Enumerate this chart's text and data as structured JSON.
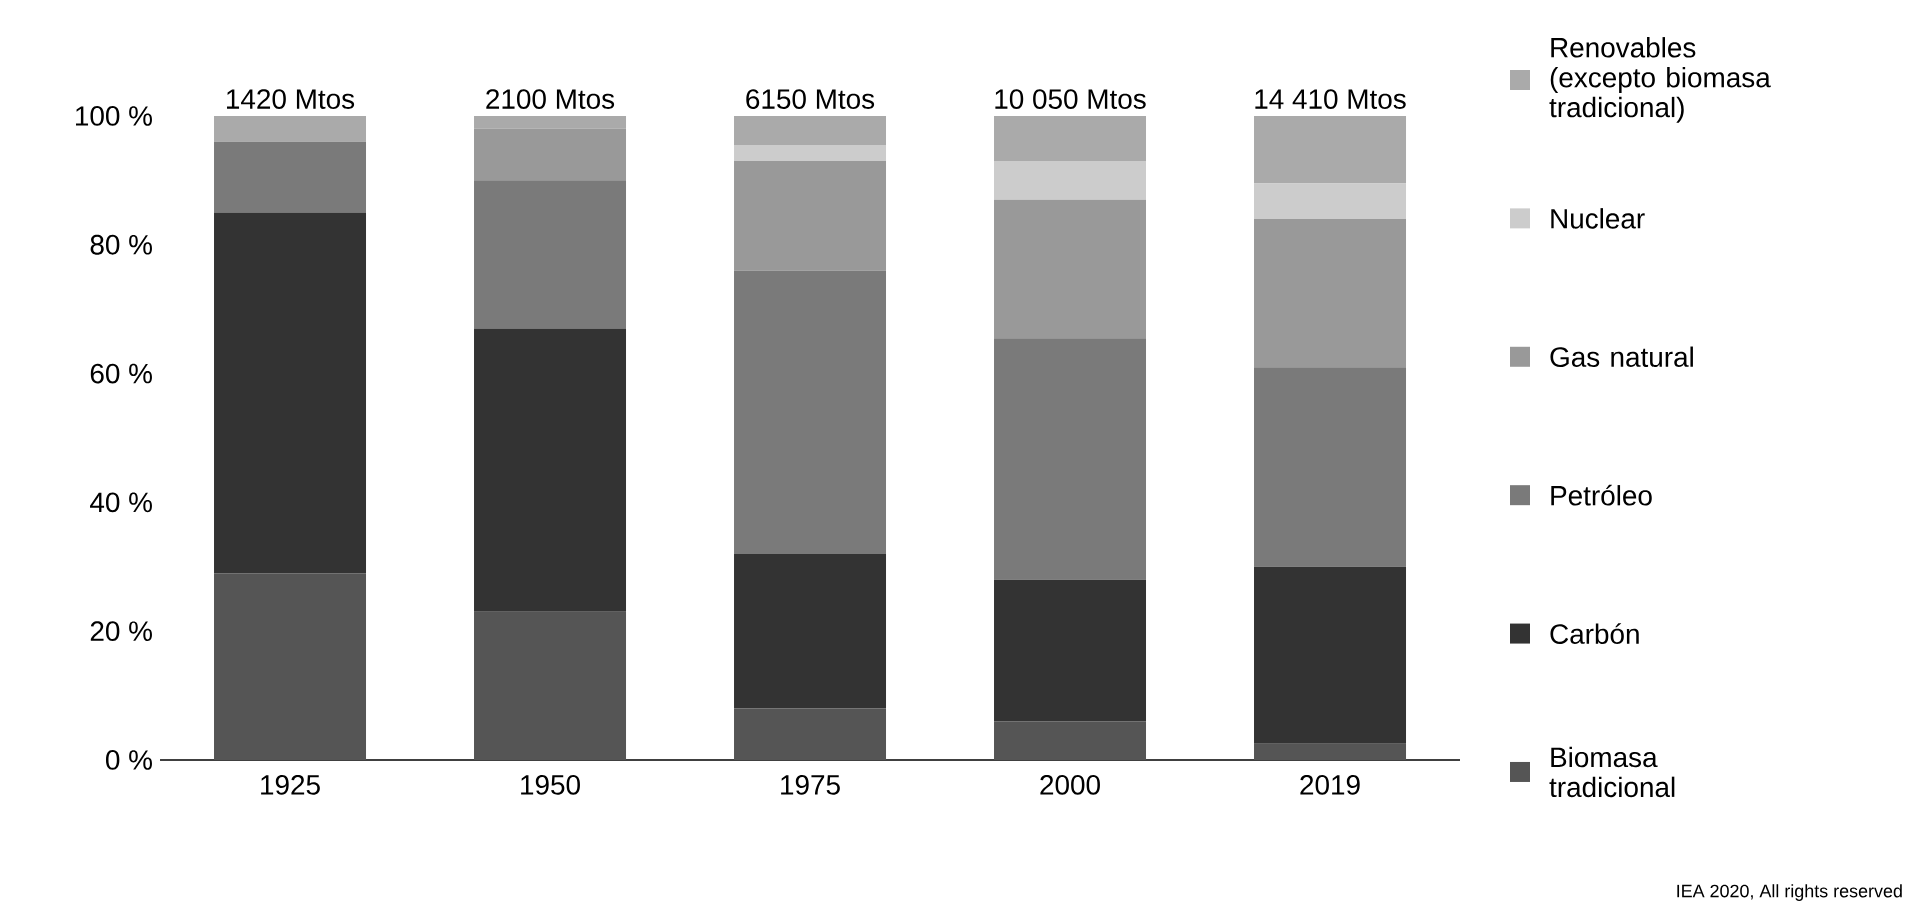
{
  "chart_data": {
    "type": "bar",
    "stacked": true,
    "categories": [
      "1925",
      "1950",
      "1975",
      "2000",
      "2019"
    ],
    "series": [
      {
        "name": "Biomasa tradicional",
        "color": "#555555",
        "values": [
          29,
          23,
          8,
          6,
          2.5
        ]
      },
      {
        "name": "Carbón",
        "color": "#333333",
        "values": [
          56,
          44,
          24,
          22,
          27.5
        ]
      },
      {
        "name": "Petróleo",
        "color": "#7a7a7a",
        "values": [
          11,
          23,
          44,
          37.5,
          31
        ]
      },
      {
        "name": "Gas natural",
        "color": "#999999",
        "values": [
          0,
          8,
          17,
          21.5,
          23
        ]
      },
      {
        "name": "Nuclear",
        "color": "#cccccc",
        "values": [
          0,
          0,
          2.5,
          6,
          5.5
        ]
      },
      {
        "name": "Renovables (excepto biomasa tradicional)",
        "color": "#aaaaaa",
        "values": [
          4,
          2,
          4.5,
          7,
          10.5
        ]
      }
    ],
    "ylim": [
      0,
      100
    ],
    "yticks": [
      {
        "value": 0,
        "label": "0 %"
      },
      {
        "value": 20,
        "label": "20 %"
      },
      {
        "value": 40,
        "label": "40 %"
      },
      {
        "value": 60,
        "label": "60 %"
      },
      {
        "value": 80,
        "label": "80 %"
      },
      {
        "value": 100,
        "label": "100 %"
      }
    ],
    "legend": "right",
    "grid": false,
    "annotations": [
      {
        "text": "1420 Mtos",
        "x": "1925",
        "y": 100
      },
      {
        "text": "2100 Mtos",
        "x": "1950",
        "y": 100
      },
      {
        "text": "6150 Mtos",
        "x": "1975",
        "y": 100
      },
      {
        "text": "10 050 Mtos",
        "x": "2000",
        "y": 100
      },
      {
        "text": "14 410 Mtos",
        "x": "2019",
        "y": 100
      },
      "IEA 2020, All rights reserved"
    ]
  }
}
